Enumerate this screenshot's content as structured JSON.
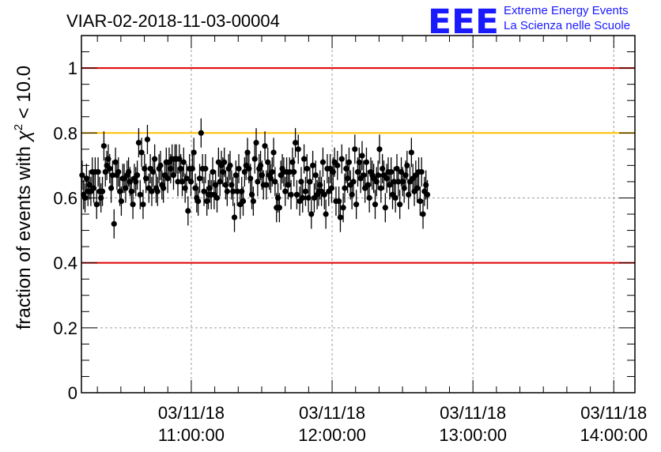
{
  "chart_data": {
    "type": "scatter",
    "title": "VIAR-02-2018-11-03-00004",
    "xlabel": "",
    "ylabel": "fraction of events with χ² < 10.0",
    "ylabel_parts": {
      "prefix": "fraction of events with ",
      "symbol": "χ",
      "sup": "2",
      "suffix": " < 10.0"
    },
    "ylim": [
      0,
      1.1
    ],
    "xlim_hours": [
      10.22,
      14.15
    ],
    "y_ticks": [
      {
        "value": 0,
        "label": "0"
      },
      {
        "value": 0.2,
        "label": "0.2"
      },
      {
        "value": 0.4,
        "label": "0.4"
      },
      {
        "value": 0.6,
        "label": "0.6"
      },
      {
        "value": 0.8,
        "label": "0.8"
      },
      {
        "value": 1,
        "label": "1"
      }
    ],
    "x_ticks": [
      {
        "hour": 11,
        "date": "03/11/18",
        "time": "11:00:00"
      },
      {
        "hour": 12,
        "date": "03/11/18",
        "time": "12:00:00"
      },
      {
        "hour": 13,
        "date": "03/11/18",
        "time": "13:00:00"
      },
      {
        "hour": 14,
        "date": "03/11/18",
        "time": "14:00:00"
      }
    ],
    "grid": true,
    "reference_lines": [
      {
        "value": 1.0,
        "color": "#e00000"
      },
      {
        "value": 0.8,
        "color": "#ffc000"
      },
      {
        "value": 0.4,
        "color": "#e00000"
      }
    ],
    "error_bar_halfwidth": 0.045,
    "x_start_hour": 10.225,
    "x_step_hour": 0.0103,
    "values": [
      0.67,
      0.61,
      0.6,
      0.66,
      0.62,
      0.64,
      0.62,
      0.68,
      0.63,
      0.68,
      0.58,
      0.68,
      0.62,
      0.6,
      0.62,
      0.76,
      0.68,
      0.7,
      0.72,
      0.69,
      0.63,
      0.67,
      0.52,
      0.71,
      0.67,
      0.68,
      0.62,
      0.59,
      0.66,
      0.66,
      0.63,
      0.67,
      0.68,
      0.65,
      0.62,
      0.58,
      0.66,
      0.65,
      0.67,
      0.77,
      0.61,
      0.74,
      0.58,
      0.69,
      0.66,
      0.78,
      0.63,
      0.69,
      0.62,
      0.68,
      0.72,
      0.63,
      0.62,
      0.69,
      0.7,
      0.64,
      0.63,
      0.67,
      0.71,
      0.66,
      0.71,
      0.69,
      0.72,
      0.67,
      0.72,
      0.72,
      0.65,
      0.72,
      0.69,
      0.65,
      0.71,
      0.63,
      0.66,
      0.56,
      0.69,
      0.65,
      0.69,
      0.74,
      0.63,
      0.6,
      0.59,
      0.66,
      0.8,
      0.69,
      0.62,
      0.69,
      0.59,
      0.61,
      0.63,
      0.61,
      0.68,
      0.61,
      0.64,
      0.6,
      0.71,
      0.65,
      0.7,
      0.68,
      0.71,
      0.64,
      0.62,
      0.69,
      0.7,
      0.64,
      0.62,
      0.54,
      0.67,
      0.62,
      0.69,
      0.58,
      0.62,
      0.59,
      0.68,
      0.7,
      0.74,
      0.69,
      0.66,
      0.61,
      0.59,
      0.72,
      0.77,
      0.65,
      0.69,
      0.7,
      0.67,
      0.64,
      0.76,
      0.64,
      0.71,
      0.67,
      0.66,
      0.68,
      0.74,
      0.65,
      0.57,
      0.6,
      0.57,
      0.67,
      0.69,
      0.68,
      0.62,
      0.68,
      0.64,
      0.68,
      0.61,
      0.71,
      0.68,
      0.77,
      0.61,
      0.75,
      0.59,
      0.65,
      0.6,
      0.72,
      0.62,
      0.69,
      0.6,
      0.65,
      0.55,
      0.7,
      0.6,
      0.67,
      0.61,
      0.62,
      0.64,
      0.62,
      0.71,
      0.61,
      0.55,
      0.69,
      0.62,
      0.69,
      0.63,
      0.68,
      0.71,
      0.59,
      0.7,
      0.59,
      0.54,
      0.72,
      0.57,
      0.63,
      0.69,
      0.66,
      0.71,
      0.64,
      0.61,
      0.65,
      0.75,
      0.58,
      0.68,
      0.71,
      0.66,
      0.73,
      0.67,
      0.63,
      0.71,
      0.64,
      0.6,
      0.68,
      0.67,
      0.66,
      0.58,
      0.65,
      0.67,
      0.75,
      0.63,
      0.69,
      0.67,
      0.57,
      0.66,
      0.68,
      0.64,
      0.68,
      0.61,
      0.65,
      0.6,
      0.69,
      0.65,
      0.58,
      0.68,
      0.65,
      0.63,
      0.67,
      0.7,
      0.61,
      0.65,
      0.74,
      0.66,
      0.62,
      0.67,
      0.63,
      0.68,
      0.59,
      0.68,
      0.55,
      0.62,
      0.64,
      0.61
    ]
  },
  "logo": {
    "mark": "EEE",
    "line1": "Extreme Energy Events",
    "line2": "La Scienza nelle Scuole"
  },
  "colors": {
    "frame": "#000000",
    "grid": "#9a9a9a",
    "marker": "#000000",
    "logo": "#1a1aff"
  }
}
